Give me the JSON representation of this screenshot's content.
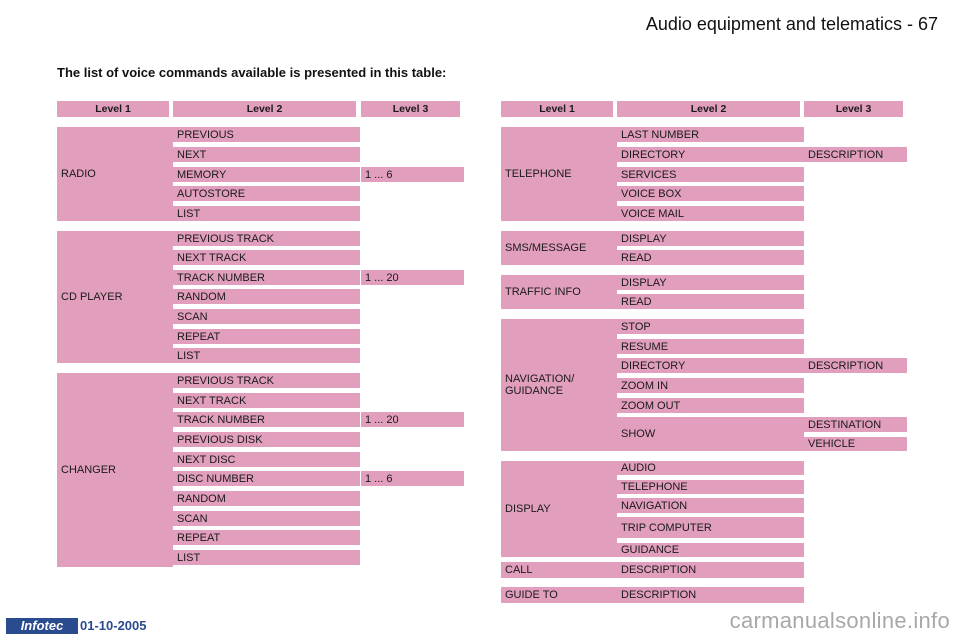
{
  "header": {
    "title": "Audio equipment and telematics - 67"
  },
  "intro": "The list of voice commands available is presented in this table:",
  "columns": {
    "level1": "Level 1",
    "level2": "Level 2",
    "level3": "Level 3"
  },
  "left_table": {
    "radio": {
      "label": "RADIO",
      "items": [
        "PREVIOUS",
        "NEXT",
        "MEMORY",
        "AUTOSTORE",
        "LIST"
      ],
      "level3": {
        "memory": "1 ... 6"
      }
    },
    "cd_player": {
      "label": "CD PLAYER",
      "items": [
        "PREVIOUS TRACK",
        "NEXT TRACK",
        "TRACK NUMBER",
        "RANDOM",
        "SCAN",
        "REPEAT",
        "LIST"
      ],
      "level3": {
        "track_number": "1 ... 20"
      }
    },
    "changer": {
      "label": "CHANGER",
      "items": [
        "PREVIOUS TRACK",
        "NEXT TRACK",
        "TRACK NUMBER",
        "PREVIOUS DISK",
        "NEXT DISC",
        "DISC NUMBER",
        "RANDOM",
        "SCAN",
        "REPEAT",
        "LIST"
      ],
      "level3": {
        "track_number": "1 ... 20",
        "disc_number": "1 ... 6"
      }
    }
  },
  "right_table": {
    "telephone": {
      "label": "TELEPHONE",
      "items": [
        "LAST NUMBER",
        "DIRECTORY",
        "SERVICES",
        "VOICE BOX",
        "VOICE MAIL"
      ],
      "level3": {
        "directory": "DESCRIPTION"
      }
    },
    "sms": {
      "label": "SMS/MESSAGE",
      "items": [
        "DISPLAY",
        "READ"
      ]
    },
    "traffic": {
      "label": "TRAFFIC INFO",
      "items": [
        "DISPLAY",
        "READ"
      ]
    },
    "navigation": {
      "label": "NAVIGATION/ GUIDANCE",
      "items": [
        "STOP",
        "RESUME",
        "DIRECTORY",
        "ZOOM IN",
        "ZOOM OUT",
        "SHOW"
      ],
      "level3": {
        "directory": "DESCRIPTION",
        "show_destination": "DESTINATION",
        "show_vehicle": "VEHICLE"
      }
    },
    "display": {
      "label": "DISPLAY",
      "items": [
        "AUDIO",
        "TELEPHONE",
        "NAVIGATION",
        "TRIP COMPUTER",
        "GUIDANCE"
      ]
    },
    "call": {
      "label": "CALL",
      "items": [
        "DESCRIPTION"
      ]
    },
    "guide_to": {
      "label": "GUIDE TO",
      "items": [
        "DESCRIPTION"
      ]
    }
  },
  "footer": {
    "logo_text": "Infotec",
    "date": "01-10-2005",
    "watermark": "carmanualsonline.info"
  },
  "colors": {
    "cell_bg": "#e19fbd",
    "logo_bg": "#2a4b8d"
  }
}
